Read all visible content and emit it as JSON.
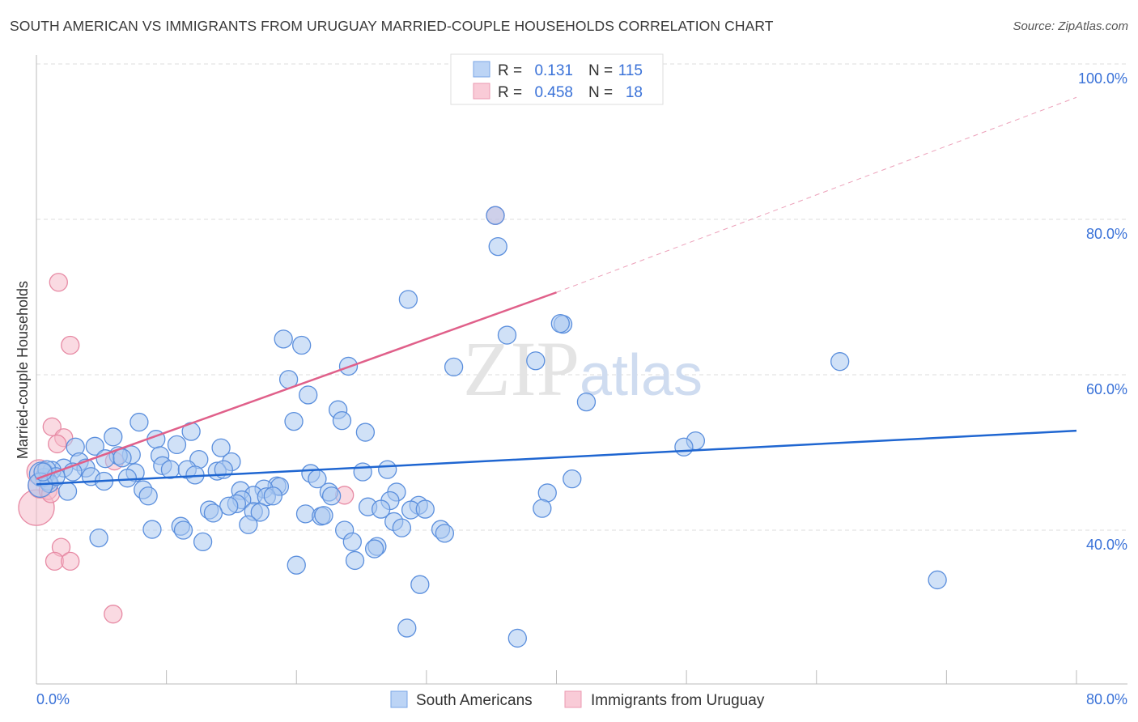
{
  "title": "SOUTH AMERICAN VS IMMIGRANTS FROM URUGUAY MARRIED-COUPLE HOUSEHOLDS CORRELATION CHART",
  "source": "Source: ZipAtlas.com",
  "watermark": "ZIPatlas",
  "colors": {
    "blue_fill": "#a9c8f0",
    "blue_stroke": "#5b8fdd",
    "blue_line": "#1f66d1",
    "pink_fill": "#f6bccb",
    "pink_stroke": "#e78aa4",
    "pink_line": "#e0608a",
    "accent_text": "#3a72d8"
  },
  "legend_stats": [
    {
      "r_label": "R =",
      "r": "0.131",
      "n_label": "N =",
      "n": "115"
    },
    {
      "r_label": "R =",
      "r": "0.458",
      "n_label": "N =",
      "n": "18"
    }
  ],
  "chart_data": {
    "type": "scatter",
    "title": "SOUTH AMERICAN VS IMMIGRANTS FROM URUGUAY MARRIED-COUPLE HOUSEHOLDS CORRELATION CHART",
    "xlabel": "",
    "ylabel": "Married-couple Households",
    "xlim": [
      0,
      80
    ],
    "ylim": [
      22,
      102
    ],
    "x_tick_labels": [
      "0.0%",
      "80.0%"
    ],
    "y_ticks": [
      40,
      60,
      80,
      100
    ],
    "y_tick_labels": [
      "40.0%",
      "60.0%",
      "80.0%",
      "100.0%"
    ],
    "grid": true,
    "legend_placement": "bottom-center",
    "series": [
      {
        "name": "South Americans",
        "trend": {
          "x": [
            0,
            80
          ],
          "y": [
            45.9,
            52.8
          ],
          "dashed_to": null
        },
        "points": [
          [
            35.5,
            76.5
          ],
          [
            28.6,
            69.7
          ],
          [
            40.5,
            66.5
          ],
          [
            40.3,
            66.6
          ],
          [
            36.2,
            65.1
          ],
          [
            19.0,
            64.6
          ],
          [
            20.4,
            63.8
          ],
          [
            38.4,
            61.8
          ],
          [
            61.8,
            61.7
          ],
          [
            24.0,
            61.1
          ],
          [
            32.1,
            61.0
          ],
          [
            19.4,
            59.4
          ],
          [
            20.9,
            57.4
          ],
          [
            42.3,
            56.5
          ],
          [
            23.2,
            55.5
          ],
          [
            7.9,
            53.9
          ],
          [
            19.8,
            54.0
          ],
          [
            23.5,
            54.1
          ],
          [
            11.9,
            52.7
          ],
          [
            25.3,
            52.6
          ],
          [
            5.9,
            52.0
          ],
          [
            9.2,
            51.7
          ],
          [
            50.7,
            51.5
          ],
          [
            49.8,
            50.7
          ],
          [
            3.0,
            50.7
          ],
          [
            4.5,
            50.8
          ],
          [
            10.8,
            51.0
          ],
          [
            14.2,
            50.6
          ],
          [
            7.3,
            49.7
          ],
          [
            6.3,
            49.6
          ],
          [
            9.5,
            49.6
          ],
          [
            5.3,
            49.2
          ],
          [
            6.6,
            49.3
          ],
          [
            12.5,
            49.1
          ],
          [
            15.0,
            48.8
          ],
          [
            3.3,
            48.8
          ],
          [
            9.7,
            48.3
          ],
          [
            10.3,
            47.8
          ],
          [
            11.6,
            47.8
          ],
          [
            3.8,
            48.0
          ],
          [
            2.1,
            48.0
          ],
          [
            1.2,
            47.7
          ],
          [
            2.8,
            47.5
          ],
          [
            13.9,
            47.6
          ],
          [
            14.4,
            47.8
          ],
          [
            7.6,
            47.4
          ],
          [
            21.1,
            47.3
          ],
          [
            25.1,
            47.5
          ],
          [
            27.0,
            47.8
          ],
          [
            4.2,
            46.9
          ],
          [
            12.2,
            47.1
          ],
          [
            5.2,
            46.3
          ],
          [
            7.0,
            46.7
          ],
          [
            21.6,
            46.6
          ],
          [
            41.2,
            46.6
          ],
          [
            0.6,
            46.8
          ],
          [
            0.9,
            46.3
          ],
          [
            18.5,
            45.7
          ],
          [
            18.7,
            45.6
          ],
          [
            8.2,
            45.2
          ],
          [
            2.4,
            45.0
          ],
          [
            15.7,
            45.1
          ],
          [
            17.5,
            45.3
          ],
          [
            22.5,
            44.9
          ],
          [
            27.7,
            44.9
          ],
          [
            39.3,
            44.8
          ],
          [
            8.6,
            44.4
          ],
          [
            16.7,
            44.5
          ],
          [
            15.8,
            43.9
          ],
          [
            17.7,
            44.3
          ],
          [
            18.2,
            44.4
          ],
          [
            22.7,
            44.4
          ],
          [
            15.4,
            43.4
          ],
          [
            14.8,
            43.1
          ],
          [
            27.2,
            43.8
          ],
          [
            25.5,
            43.0
          ],
          [
            29.4,
            43.2
          ],
          [
            28.8,
            42.6
          ],
          [
            26.5,
            42.7
          ],
          [
            29.9,
            42.7
          ],
          [
            13.3,
            42.6
          ],
          [
            13.6,
            42.2
          ],
          [
            16.7,
            42.4
          ],
          [
            17.2,
            42.3
          ],
          [
            20.7,
            42.1
          ],
          [
            21.9,
            41.8
          ],
          [
            22.1,
            41.9
          ],
          [
            38.9,
            42.8
          ],
          [
            27.5,
            41.1
          ],
          [
            16.3,
            40.7
          ],
          [
            8.9,
            40.1
          ],
          [
            11.1,
            40.5
          ],
          [
            11.3,
            40.0
          ],
          [
            23.7,
            40.0
          ],
          [
            31.1,
            40.1
          ],
          [
            31.4,
            39.6
          ],
          [
            28.1,
            40.3
          ],
          [
            4.8,
            39.0
          ],
          [
            12.8,
            38.5
          ],
          [
            24.3,
            38.5
          ],
          [
            26.2,
            37.9
          ],
          [
            26.0,
            37.6
          ],
          [
            24.5,
            36.1
          ],
          [
            20.0,
            35.5
          ],
          [
            69.3,
            33.6
          ],
          [
            29.5,
            33.0
          ],
          [
            28.5,
            27.4
          ],
          [
            37.0,
            26.1
          ],
          [
            35.3,
            80.5
          ],
          [
            0.4,
            47.2
          ],
          [
            0.8,
            47.8
          ],
          [
            1.0,
            46.0
          ],
          [
            0.3,
            45.8
          ],
          [
            1.5,
            46.9
          ],
          [
            0.5,
            47.5
          ]
        ]
      },
      {
        "name": "Immigrants from Uruguay",
        "trend": {
          "x": [
            0,
            40
          ],
          "y": [
            46.6,
            70.6
          ],
          "dashed_to": [
            80,
            95.7
          ]
        },
        "points": [
          [
            1.7,
            71.9
          ],
          [
            2.6,
            63.8
          ],
          [
            1.2,
            53.3
          ],
          [
            2.1,
            51.9
          ],
          [
            1.6,
            51.1
          ],
          [
            6.0,
            48.9
          ],
          [
            23.7,
            44.5
          ],
          [
            1.9,
            37.8
          ],
          [
            1.4,
            36.0
          ],
          [
            2.6,
            36.0
          ],
          [
            5.9,
            29.2
          ],
          [
            35.3,
            80.5
          ],
          [
            0.0,
            42.9
          ],
          [
            0.6,
            46.8
          ],
          [
            0.3,
            45.7
          ],
          [
            0.9,
            45.1
          ],
          [
            1.1,
            44.7
          ],
          [
            0.2,
            47.5
          ]
        ]
      }
    ]
  }
}
